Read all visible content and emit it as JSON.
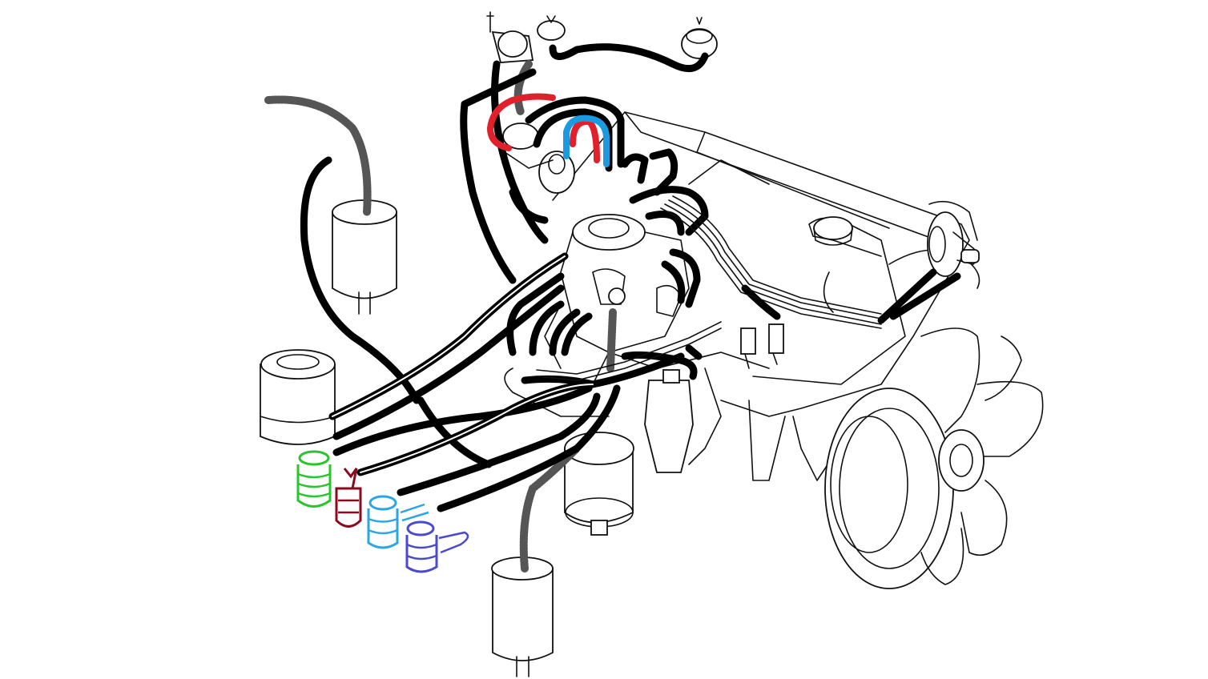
{
  "diagram": {
    "colors": {
      "line": "#111111",
      "hose": "#000000",
      "red_hose": "#e0202a",
      "blue_hose": "#1a9be0",
      "green_valve": "#2cc42c",
      "maroon_valve": "#8b0a1e",
      "lightblue_valve": "#2aa6e6",
      "purple_valve": "#4a4ad0"
    }
  }
}
